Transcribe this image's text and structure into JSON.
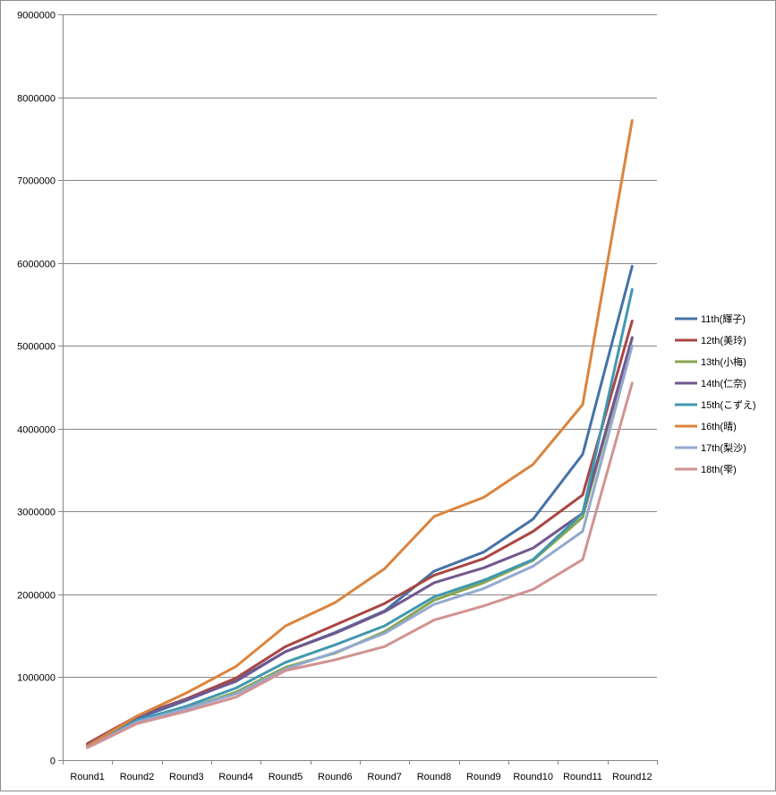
{
  "chart_data": {
    "type": "line",
    "title": "",
    "xlabel": "",
    "ylabel": "",
    "categories": [
      "Round1",
      "Round2",
      "Round3",
      "Round4",
      "Round5",
      "Round6",
      "Round7",
      "Round8",
      "Round9",
      "Round10",
      "Round11",
      "Round12"
    ],
    "ylim": [
      0,
      9000000
    ],
    "yticks": [
      "0",
      "1000000",
      "2000000",
      "3000000",
      "4000000",
      "5000000",
      "6000000",
      "7000000",
      "8000000",
      "9000000"
    ],
    "grid": true,
    "legend_position": "right",
    "series": [
      {
        "name": "11th(輝子)",
        "color": "#4572a7",
        "values": [
          190000,
          500000,
          720000,
          960000,
          1310000,
          1540000,
          1800000,
          2280000,
          2510000,
          2910000,
          3690000,
          5960000
        ]
      },
      {
        "name": "12th(美玲)",
        "color": "#aa4643",
        "values": [
          200000,
          530000,
          740000,
          990000,
          1370000,
          1630000,
          1890000,
          2230000,
          2430000,
          2760000,
          3200000,
          5300000
        ]
      },
      {
        "name": "13th(小梅)",
        "color": "#89a54e",
        "values": [
          160000,
          460000,
          620000,
          820000,
          1120000,
          1290000,
          1550000,
          1930000,
          2140000,
          2410000,
          2930000,
          5090000
        ]
      },
      {
        "name": "14th(仁奈)",
        "color": "#71588f",
        "values": [
          180000,
          520000,
          730000,
          950000,
          1310000,
          1530000,
          1790000,
          2140000,
          2320000,
          2560000,
          2980000,
          5100000
        ]
      },
      {
        "name": "15th(こずえ)",
        "color": "#4198af",
        "values": [
          170000,
          480000,
          650000,
          870000,
          1180000,
          1390000,
          1620000,
          1970000,
          2170000,
          2420000,
          2980000,
          5680000
        ]
      },
      {
        "name": "16th(晴)",
        "color": "#db843d",
        "values": [
          170000,
          530000,
          810000,
          1130000,
          1620000,
          1900000,
          2310000,
          2940000,
          3170000,
          3570000,
          4290000,
          7720000
        ]
      },
      {
        "name": "17th(梨沙)",
        "color": "#93a9cf",
        "values": [
          150000,
          460000,
          620000,
          800000,
          1100000,
          1300000,
          1530000,
          1880000,
          2070000,
          2340000,
          2760000,
          5000000
        ]
      },
      {
        "name": "18th(雫)",
        "color": "#d19392",
        "values": [
          150000,
          440000,
          590000,
          760000,
          1080000,
          1210000,
          1370000,
          1690000,
          1860000,
          2060000,
          2420000,
          4550000
        ]
      }
    ]
  }
}
